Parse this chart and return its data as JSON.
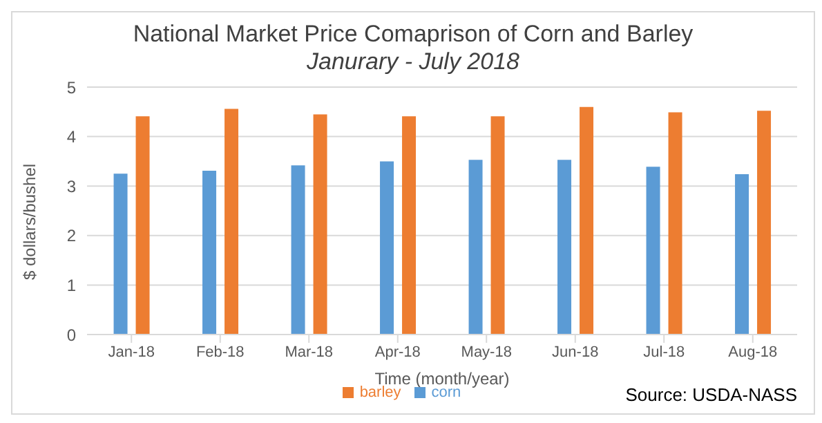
{
  "chart_data": {
    "type": "bar",
    "title": "National Market Price Comaprison of Corn and Barley",
    "subtitle": "Janurary - July 2018",
    "xlabel": "Time (month/year)",
    "ylabel": "$ dollars/bushel",
    "categories": [
      "Jan-18",
      "Feb-18",
      "Mar-18",
      "Apr-18",
      "May-18",
      "Jun-18",
      "Jul-18",
      "Aug-18"
    ],
    "series": [
      {
        "name": "corn",
        "color": "#5b9bd5",
        "values": [
          3.25,
          3.31,
          3.42,
          3.5,
          3.53,
          3.53,
          3.39,
          3.24
        ]
      },
      {
        "name": "barley",
        "color": "#ed7d31",
        "values": [
          4.41,
          4.56,
          4.45,
          4.41,
          4.41,
          4.6,
          4.49,
          4.52
        ]
      }
    ],
    "ylim": [
      0,
      5
    ],
    "yticks": [
      0,
      1,
      2,
      3,
      4,
      5
    ],
    "grid": "y",
    "legend": "bottom",
    "annotations": [
      "Source: USDA-NASS"
    ]
  }
}
